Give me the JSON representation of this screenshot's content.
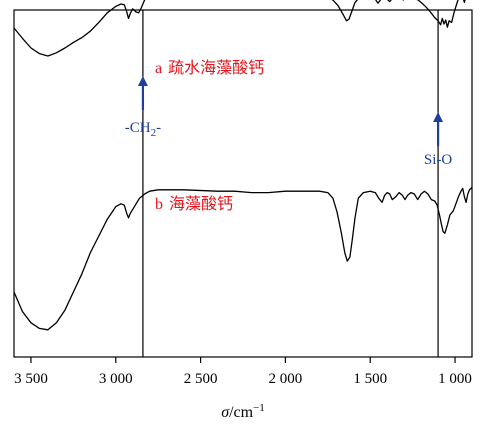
{
  "chart_data": {
    "type": "line",
    "x_reversed": true,
    "xlim": [
      3600,
      900
    ],
    "x_ticks": [
      3500,
      3000,
      2500,
      2000,
      1500,
      1000
    ],
    "x_tick_labels": [
      "3 500",
      "3 000",
      "2 500",
      "2 000",
      "1 500",
      "1 000"
    ],
    "xlabel_var": "σ",
    "xlabel_unit": "/cm",
    "xlabel_sup": "−1",
    "y_ticks": false,
    "grid": false,
    "series": [
      {
        "name": "a 疏水海藻酸钙",
        "prefix": "a",
        "label_text": "疏水海藻酸钙",
        "color": "#000000",
        "points": [
          [
            3600,
            0.4
          ],
          [
            3550,
            0.27
          ],
          [
            3500,
            0.15
          ],
          [
            3450,
            0.08
          ],
          [
            3400,
            0.05
          ],
          [
            3350,
            0.09
          ],
          [
            3300,
            0.15
          ],
          [
            3250,
            0.22
          ],
          [
            3200,
            0.28
          ],
          [
            3150,
            0.36
          ],
          [
            3100,
            0.47
          ],
          [
            3050,
            0.59
          ],
          [
            3000,
            0.67
          ],
          [
            2970,
            0.7
          ],
          [
            2950,
            0.69
          ],
          [
            2935,
            0.6
          ],
          [
            2925,
            0.52
          ],
          [
            2915,
            0.58
          ],
          [
            2900,
            0.64
          ],
          [
            2880,
            0.6
          ],
          [
            2865,
            0.59
          ],
          [
            2850,
            0.65
          ],
          [
            2830,
            0.75
          ],
          [
            2800,
            0.8
          ],
          [
            2750,
            0.81
          ],
          [
            2600,
            0.82
          ],
          [
            2400,
            0.82
          ],
          [
            2300,
            0.81
          ],
          [
            2200,
            0.815
          ],
          [
            2100,
            0.81
          ],
          [
            2000,
            0.81
          ],
          [
            1900,
            0.8
          ],
          [
            1800,
            0.79
          ],
          [
            1750,
            0.78
          ],
          [
            1720,
            0.75
          ],
          [
            1690,
            0.68
          ],
          [
            1660,
            0.57
          ],
          [
            1640,
            0.49
          ],
          [
            1625,
            0.51
          ],
          [
            1610,
            0.6
          ],
          [
            1590,
            0.72
          ],
          [
            1560,
            0.79
          ],
          [
            1520,
            0.81
          ],
          [
            1490,
            0.8
          ],
          [
            1470,
            0.76
          ],
          [
            1455,
            0.71
          ],
          [
            1440,
            0.75
          ],
          [
            1420,
            0.79
          ],
          [
            1400,
            0.76
          ],
          [
            1385,
            0.73
          ],
          [
            1370,
            0.77
          ],
          [
            1340,
            0.8
          ],
          [
            1320,
            0.77
          ],
          [
            1305,
            0.75
          ],
          [
            1290,
            0.78
          ],
          [
            1270,
            0.8
          ],
          [
            1250,
            0.79
          ],
          [
            1230,
            0.77
          ],
          [
            1200,
            0.72
          ],
          [
            1170,
            0.66
          ],
          [
            1145,
            0.6
          ],
          [
            1120,
            0.53
          ],
          [
            1100,
            0.49
          ],
          [
            1085,
            0.44
          ],
          [
            1075,
            0.52
          ],
          [
            1065,
            0.45
          ],
          [
            1055,
            0.5
          ],
          [
            1045,
            0.41
          ],
          [
            1035,
            0.49
          ],
          [
            1020,
            0.47
          ],
          [
            1005,
            0.6
          ],
          [
            990,
            0.7
          ],
          [
            975,
            0.8
          ],
          [
            965,
            0.83
          ],
          [
            955,
            0.79
          ],
          [
            945,
            0.72
          ],
          [
            935,
            0.81
          ],
          [
            925,
            0.84
          ],
          [
            915,
            0.8
          ],
          [
            905,
            0.85
          ],
          [
            900,
            0.86
          ]
        ]
      },
      {
        "name": "b 海藻酸钙",
        "prefix": "b",
        "label_text": "海藻酸钙",
        "color": "#000000",
        "points": [
          [
            3600,
            -0.6
          ],
          [
            3550,
            -0.74
          ],
          [
            3500,
            -0.82
          ],
          [
            3450,
            -0.86
          ],
          [
            3400,
            -0.87
          ],
          [
            3350,
            -0.82
          ],
          [
            3300,
            -0.73
          ],
          [
            3250,
            -0.6
          ],
          [
            3200,
            -0.47
          ],
          [
            3150,
            -0.32
          ],
          [
            3100,
            -0.2
          ],
          [
            3050,
            -0.08
          ],
          [
            3000,
            0.01
          ],
          [
            2970,
            0.03
          ],
          [
            2950,
            0.02
          ],
          [
            2935,
            -0.04
          ],
          [
            2925,
            -0.07
          ],
          [
            2915,
            -0.04
          ],
          [
            2900,
            -0.01
          ],
          [
            2880,
            0.03
          ],
          [
            2860,
            0.07
          ],
          [
            2830,
            0.1
          ],
          [
            2800,
            0.12
          ],
          [
            2750,
            0.13
          ],
          [
            2600,
            0.13
          ],
          [
            2400,
            0.12
          ],
          [
            2300,
            0.12
          ],
          [
            2200,
            0.11
          ],
          [
            2100,
            0.11
          ],
          [
            2000,
            0.12
          ],
          [
            1900,
            0.12
          ],
          [
            1800,
            0.12
          ],
          [
            1750,
            0.11
          ],
          [
            1720,
            0.07
          ],
          [
            1695,
            -0.03
          ],
          [
            1670,
            -0.18
          ],
          [
            1650,
            -0.32
          ],
          [
            1635,
            -0.38
          ],
          [
            1620,
            -0.35
          ],
          [
            1605,
            -0.22
          ],
          [
            1590,
            -0.07
          ],
          [
            1570,
            0.07
          ],
          [
            1540,
            0.11
          ],
          [
            1500,
            0.12
          ],
          [
            1470,
            0.11
          ],
          [
            1450,
            0.07
          ],
          [
            1430,
            0.04
          ],
          [
            1415,
            0.09
          ],
          [
            1400,
            0.11
          ],
          [
            1385,
            0.1
          ],
          [
            1370,
            0.06
          ],
          [
            1350,
            0.08
          ],
          [
            1330,
            0.11
          ],
          [
            1310,
            0.09
          ],
          [
            1295,
            0.06
          ],
          [
            1280,
            0.09
          ],
          [
            1260,
            0.11
          ],
          [
            1240,
            0.1
          ],
          [
            1220,
            0.06
          ],
          [
            1200,
            0.1
          ],
          [
            1180,
            0.12
          ],
          [
            1160,
            0.1
          ],
          [
            1140,
            0.06
          ],
          [
            1120,
            0.05
          ],
          [
            1105,
            0.02
          ],
          [
            1090,
            -0.06
          ],
          [
            1080,
            -0.12
          ],
          [
            1070,
            -0.17
          ],
          [
            1060,
            -0.18
          ],
          [
            1045,
            -0.12
          ],
          [
            1030,
            -0.05
          ],
          [
            1010,
            -0.02
          ],
          [
            995,
            0.03
          ],
          [
            980,
            0.08
          ],
          [
            965,
            0.12
          ],
          [
            955,
            0.14
          ],
          [
            945,
            0.08
          ],
          [
            935,
            0.04
          ],
          [
            925,
            0.1
          ],
          [
            915,
            0.13
          ],
          [
            905,
            0.14
          ],
          [
            900,
            0.15
          ]
        ]
      }
    ],
    "markers": [
      {
        "x": 2840,
        "label_pre": "-CH",
        "label_sub": "2",
        "label_post": "-",
        "color": "#1f3f9e"
      },
      {
        "x": 1100,
        "label_pre": "Si-O",
        "label_sub": "",
        "label_post": "",
        "color": "#1f3f9e"
      }
    ]
  }
}
